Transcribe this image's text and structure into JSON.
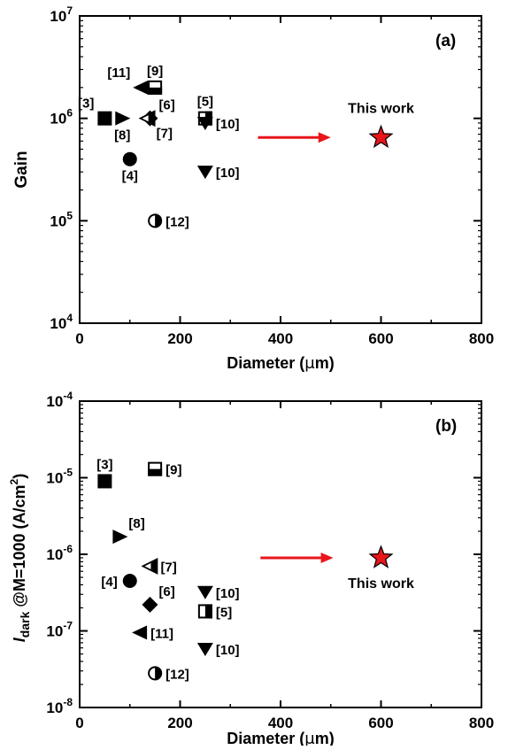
{
  "chart_data": [
    {
      "type": "scatter",
      "panel_label": "(a)",
      "xlabel_main": "Diameter (",
      "xlabel_mu": "μ",
      "xlabel_end": "m)",
      "ylabel": "Gain",
      "xlim": [
        0,
        800
      ],
      "ylim": [
        10000,
        10000000
      ],
      "yscale": "log",
      "xticks": [
        0,
        200,
        400,
        600,
        800
      ],
      "yticks": [
        {
          "base": "10",
          "exp": "4"
        },
        {
          "base": "10",
          "exp": "5"
        },
        {
          "base": "10",
          "exp": "6"
        },
        {
          "base": "10",
          "exp": "7"
        }
      ],
      "arrow": {
        "x_from": 355,
        "x_to": 500,
        "y": 650000,
        "color": "#e8161b"
      },
      "points": [
        {
          "ref": "[3]",
          "x": 50,
          "y": 1000000,
          "marker": "square",
          "label_pos": "above-left"
        },
        {
          "ref": "[8]",
          "x": 85,
          "y": 1000000,
          "marker": "triangle-right",
          "label_pos": "below"
        },
        {
          "ref": "[4]",
          "x": 100,
          "y": 400000,
          "marker": "circle",
          "label_pos": "below"
        },
        {
          "ref": "[11]",
          "x": 122,
          "y": 2000000,
          "marker": "triangle-left",
          "label_pos": "above-left"
        },
        {
          "ref": "[9]",
          "x": 150,
          "y": 2000000,
          "marker": "square-half-top",
          "label_pos": "above"
        },
        {
          "ref": "[6]",
          "x": 140,
          "y": 1000000,
          "marker": "diamond",
          "label_pos": "above-right"
        },
        {
          "ref": "[7]",
          "x": 135,
          "y": 1000000,
          "marker": "triangle-left-half",
          "label_pos": "below-right"
        },
        {
          "ref": "[12]",
          "x": 150,
          "y": 100000,
          "marker": "circle-half-right",
          "label_pos": "right"
        },
        {
          "ref": "[5]",
          "x": 250,
          "y": 1000000,
          "marker": "square-half-right",
          "label_pos": "above"
        },
        {
          "ref": "[10]",
          "x": 250,
          "y": 900000,
          "marker": "triangle-down",
          "label_pos": "right"
        },
        {
          "ref": "[10]",
          "x": 250,
          "y": 300000,
          "marker": "triangle-down",
          "label_pos": "right"
        },
        {
          "ref": "This work",
          "x": 600,
          "y": 650000,
          "marker": "star",
          "label_pos": "above",
          "color": "#e8161b"
        }
      ]
    },
    {
      "type": "scatter",
      "panel_label": "(b)",
      "xlabel_main": "Diameter (",
      "xlabel_mu": "μ",
      "xlabel_end": "m)",
      "ylabel_italic": "I",
      "ylabel_sub": "dark",
      "ylabel_rest": " @M=1000 (A/cm",
      "ylabel_sup": "2",
      "ylabel_close": ")",
      "xlim": [
        0,
        800
      ],
      "ylim": [
        1e-08,
        0.0001
      ],
      "yscale": "log",
      "xticks": [
        0,
        200,
        400,
        600,
        800
      ],
      "yticks": [
        {
          "base": "10",
          "exp": "-8"
        },
        {
          "base": "10",
          "exp": "-7"
        },
        {
          "base": "10",
          "exp": "-6"
        },
        {
          "base": "10",
          "exp": "-5"
        },
        {
          "base": "10",
          "exp": "-4"
        }
      ],
      "arrow": {
        "x_from": 360,
        "x_to": 505,
        "y": 9e-07,
        "color": "#e8161b"
      },
      "points": [
        {
          "ref": "[3]",
          "x": 50,
          "y": 9e-06,
          "marker": "square",
          "label_pos": "above"
        },
        {
          "ref": "[9]",
          "x": 150,
          "y": 1.3e-05,
          "marker": "square-half-top",
          "label_pos": "right"
        },
        {
          "ref": "[8]",
          "x": 80,
          "y": 1.7e-06,
          "marker": "triangle-right",
          "label_pos": "above-right"
        },
        {
          "ref": "[7]",
          "x": 140,
          "y": 7e-07,
          "marker": "triangle-left-half",
          "label_pos": "right"
        },
        {
          "ref": "[4]",
          "x": 100,
          "y": 4.5e-07,
          "marker": "circle",
          "label_pos": "left"
        },
        {
          "ref": "[6]",
          "x": 140,
          "y": 2.2e-07,
          "marker": "diamond",
          "label_pos": "above-right"
        },
        {
          "ref": "[11]",
          "x": 120,
          "y": 9.5e-08,
          "marker": "triangle-left",
          "label_pos": "right"
        },
        {
          "ref": "[12]",
          "x": 150,
          "y": 2.8e-08,
          "marker": "circle-half-right",
          "label_pos": "right"
        },
        {
          "ref": "[10]",
          "x": 250,
          "y": 3.2e-07,
          "marker": "triangle-down",
          "label_pos": "right"
        },
        {
          "ref": "[5]",
          "x": 250,
          "y": 1.8e-07,
          "marker": "square-half-right",
          "label_pos": "right"
        },
        {
          "ref": "[10]",
          "x": 250,
          "y": 5.8e-08,
          "marker": "triangle-down",
          "label_pos": "right"
        },
        {
          "ref": "This work",
          "x": 600,
          "y": 9e-07,
          "marker": "star",
          "label_pos": "below",
          "color": "#e8161b"
        }
      ]
    }
  ]
}
